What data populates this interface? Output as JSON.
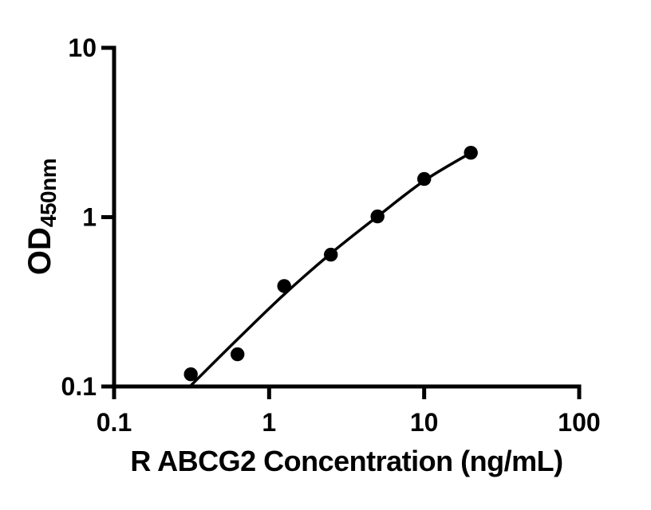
{
  "figure": {
    "background_color": "#ffffff",
    "axis_color": "#000000",
    "marker_color": "#000000",
    "curve_color": "#000000"
  },
  "chart_data": {
    "type": "scatter",
    "title": "",
    "xlabel": "R ABCG2 Concentration (ng/mL)",
    "ylabel_main": "OD",
    "ylabel_sub": "450nm",
    "x_scale": "log",
    "y_scale": "log",
    "xlim": [
      0.1,
      100
    ],
    "ylim": [
      0.1,
      10
    ],
    "grid": false,
    "legend": false,
    "x_ticks": [
      {
        "value": 0.1,
        "label": "0.1"
      },
      {
        "value": 1,
        "label": "1"
      },
      {
        "value": 10,
        "label": "10"
      },
      {
        "value": 100,
        "label": "100"
      }
    ],
    "y_ticks": [
      {
        "value": 0.1,
        "label": "0.1"
      },
      {
        "value": 1,
        "label": "1"
      },
      {
        "value": 10,
        "label": "10"
      }
    ],
    "series": [
      {
        "name": "standard data points",
        "type": "scatter",
        "marker": "circle",
        "points": [
          {
            "x": 0.3125,
            "y": 0.118
          },
          {
            "x": 0.625,
            "y": 0.155
          },
          {
            "x": 1.25,
            "y": 0.392
          },
          {
            "x": 2.5,
            "y": 0.6
          },
          {
            "x": 5,
            "y": 1.01
          },
          {
            "x": 10,
            "y": 1.68
          },
          {
            "x": 20,
            "y": 2.4
          }
        ]
      },
      {
        "name": "fitted standard curve",
        "type": "line",
        "points": [
          {
            "x": 0.315,
            "y": 0.102
          },
          {
            "x": 0.625,
            "y": 0.19
          },
          {
            "x": 1.25,
            "y": 0.35
          },
          {
            "x": 2.5,
            "y": 0.61
          },
          {
            "x": 5,
            "y": 1.01
          },
          {
            "x": 10,
            "y": 1.64
          },
          {
            "x": 20,
            "y": 2.4
          }
        ]
      }
    ]
  }
}
